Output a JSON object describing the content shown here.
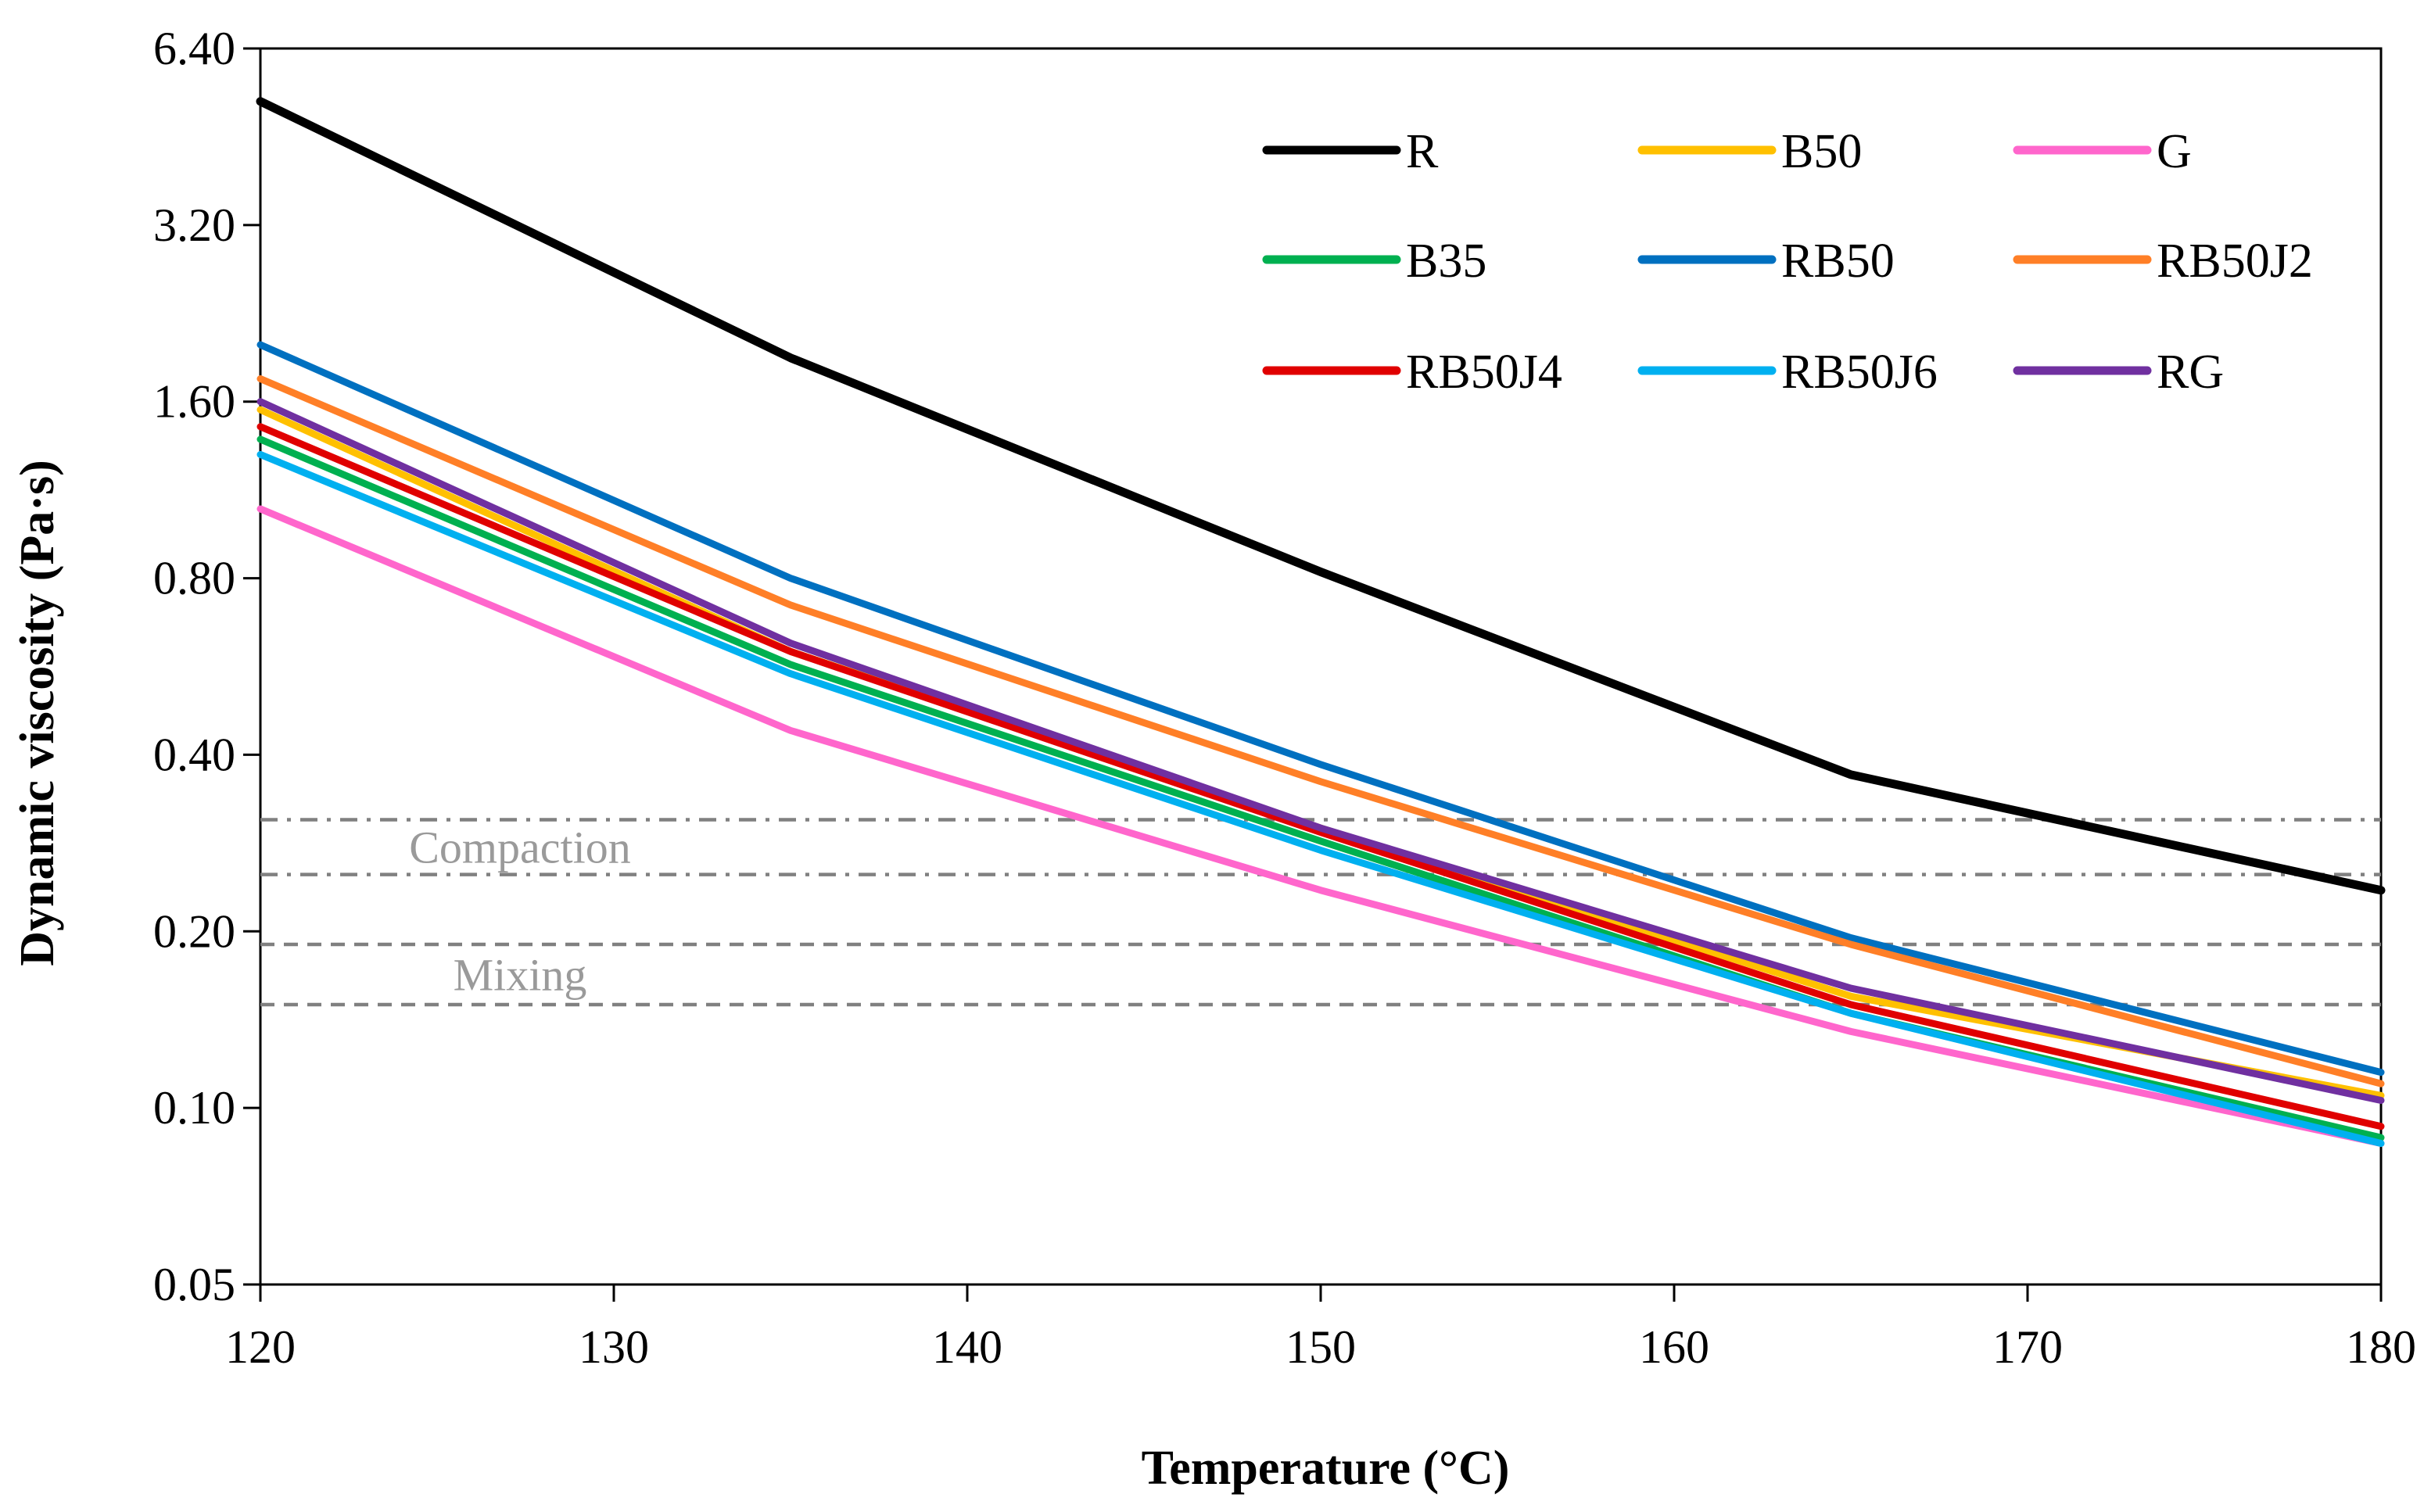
{
  "chart_data": {
    "type": "line",
    "title": "",
    "xlabel": "Temperature (°C)",
    "ylabel": "Dynamic viscosity (Pa·s)",
    "y_scale": "log2",
    "xlim": [
      120,
      180
    ],
    "ylim": [
      0.05,
      6.4
    ],
    "x_ticks": [
      120,
      130,
      140,
      150,
      160,
      170,
      180
    ],
    "x_tick_labels": [
      "120",
      "130",
      "140",
      "150",
      "160",
      "170",
      "180"
    ],
    "y_ticks": [
      0.05,
      0.1,
      0.2,
      0.4,
      0.8,
      1.6,
      3.2,
      6.4
    ],
    "y_tick_labels": [
      "0.05",
      "0.10",
      "0.20",
      "0.40",
      "0.80",
      "1.60",
      "3.20",
      "6.40"
    ],
    "legend_position": "top-right",
    "reference_lines": [
      {
        "label": "Compaction",
        "low": 0.25,
        "high": 0.31,
        "style": "dash-dot",
        "color": "#808080"
      },
      {
        "label": "Mixing",
        "low": 0.15,
        "high": 0.19,
        "style": "dashed",
        "color": "#808080"
      }
    ],
    "x": [
      120,
      135,
      150,
      165,
      180
    ],
    "series": [
      {
        "name": "R",
        "color": "#000000",
        "values": [
          5.2,
          1.9,
          0.82,
          0.37,
          0.235
        ]
      },
      {
        "name": "B50",
        "color": "#FFC000",
        "values": [
          1.55,
          0.6,
          0.3,
          0.155,
          0.105
        ]
      },
      {
        "name": "G",
        "color": "#FF66CC",
        "values": [
          1.05,
          0.44,
          0.235,
          0.135,
          0.087
        ]
      },
      {
        "name": "B35",
        "color": "#00B050",
        "values": [
          1.38,
          0.57,
          0.285,
          0.145,
          0.089
        ]
      },
      {
        "name": "RB50",
        "color": "#0070C0",
        "values": [
          2.0,
          0.8,
          0.385,
          0.195,
          0.115
        ]
      },
      {
        "name": "RB50J2",
        "color": "#FF7F27",
        "values": [
          1.75,
          0.72,
          0.36,
          0.19,
          0.11
        ]
      },
      {
        "name": "RB50J4",
        "color": "#E00000",
        "values": [
          1.45,
          0.6,
          0.295,
          0.15,
          0.093
        ]
      },
      {
        "name": "RB50J6",
        "color": "#00B0F0",
        "values": [
          1.3,
          0.55,
          0.275,
          0.145,
          0.087
        ]
      },
      {
        "name": "RG",
        "color": "#7030A0",
        "values": [
          1.6,
          0.62,
          0.3,
          0.16,
          0.103
        ]
      }
    ]
  }
}
